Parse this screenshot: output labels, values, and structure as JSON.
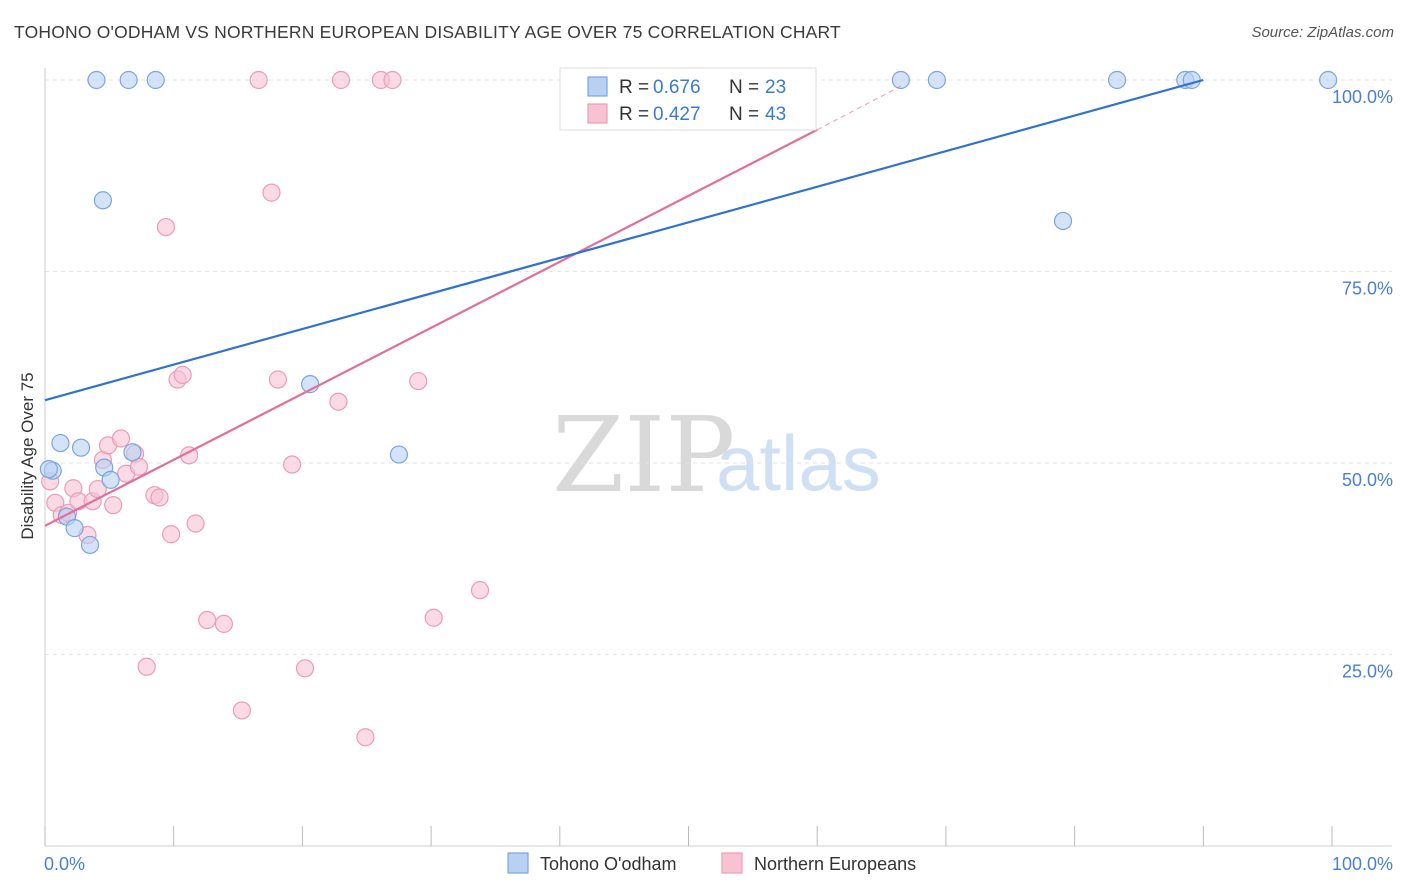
{
  "title": "TOHONO O'ODHAM VS NORTHERN EUROPEAN DISABILITY AGE OVER 75 CORRELATION CHART",
  "source": "Source: ZipAtlas.com",
  "watermark": {
    "zip": "ZIP",
    "atlas": "atlas"
  },
  "colors": {
    "blue_fill": "#b8d0f2",
    "blue_stroke": "#7aa5e0",
    "blue_line": "#2f72d0",
    "pink_fill": "#f7c3d3",
    "pink_stroke": "#ee9bb5",
    "pink_line": "#e0709a",
    "value_text": "#3a7ad6",
    "label_text": "#333333",
    "grid": "#e3e3e3"
  },
  "legend": {
    "r_label": "R =",
    "n_label": "N =",
    "rows": [
      {
        "series": "Tohono O'odham",
        "r": "0.676",
        "n": "23"
      },
      {
        "series": "Northern Europeans",
        "r": "0.427",
        "n": "43"
      }
    ]
  },
  "chart_data": {
    "type": "scatter",
    "title": "TOHONO O'ODHAM VS NORTHERN EUROPEAN DISABILITY AGE OVER 75 CORRELATION CHART",
    "xlabel": "",
    "ylabel": "Disability Age Over 75",
    "xlim": [
      0,
      100
    ],
    "ylim": [
      0,
      100
    ],
    "x_tick_labels": [
      {
        "value": 0,
        "label": "0.0%"
      },
      {
        "value": 100,
        "label": "100.0%"
      }
    ],
    "y_tick_labels": [
      {
        "value": 25,
        "label": "25.0%"
      },
      {
        "value": 50,
        "label": "50.0%"
      },
      {
        "value": 75,
        "label": "75.0%"
      },
      {
        "value": 100,
        "label": "100.0%"
      }
    ],
    "grid": true,
    "legend_position": "bottom",
    "series": [
      {
        "name": "Tohono O'odham",
        "trend": {
          "x": [
            0,
            90
          ],
          "y": [
            58.2,
            100
          ]
        },
        "points": [
          {
            "x": 0.6,
            "y": 49.0
          },
          {
            "x": 1.2,
            "y": 52.6
          },
          {
            "x": 1.7,
            "y": 43.0
          },
          {
            "x": 2.3,
            "y": 41.5
          },
          {
            "x": 2.8,
            "y": 52.0
          },
          {
            "x": 3.5,
            "y": 39.3
          },
          {
            "x": 4.6,
            "y": 49.4
          },
          {
            "x": 5.1,
            "y": 47.8
          },
          {
            "x": 6.8,
            "y": 51.4
          },
          {
            "x": 4.5,
            "y": 84.3
          },
          {
            "x": 4.0,
            "y": 100
          },
          {
            "x": 6.5,
            "y": 100
          },
          {
            "x": 8.6,
            "y": 100
          },
          {
            "x": 20.6,
            "y": 60.3
          },
          {
            "x": 27.5,
            "y": 51.1
          },
          {
            "x": 66.5,
            "y": 100
          },
          {
            "x": 69.3,
            "y": 100
          },
          {
            "x": 79.1,
            "y": 81.6
          },
          {
            "x": 83.3,
            "y": 100
          },
          {
            "x": 88.6,
            "y": 100
          },
          {
            "x": 89.1,
            "y": 100
          },
          {
            "x": 99.7,
            "y": 100
          },
          {
            "x": 0.3,
            "y": 49.2
          }
        ]
      },
      {
        "name": "Northern Europeans",
        "trend": {
          "x": [
            0,
            60
          ],
          "y": [
            41.8,
            93.5
          ]
        },
        "trend_dashed": {
          "x": [
            60,
            66.5
          ],
          "y": [
            93.5,
            99.2
          ]
        },
        "points": [
          {
            "x": 0.4,
            "y": 47.6
          },
          {
            "x": 0.8,
            "y": 44.8
          },
          {
            "x": 1.3,
            "y": 43.2
          },
          {
            "x": 1.8,
            "y": 43.5
          },
          {
            "x": 2.2,
            "y": 46.7
          },
          {
            "x": 2.6,
            "y": 45.0
          },
          {
            "x": 3.3,
            "y": 40.6
          },
          {
            "x": 3.7,
            "y": 45.0
          },
          {
            "x": 4.1,
            "y": 46.6
          },
          {
            "x": 4.5,
            "y": 50.4
          },
          {
            "x": 4.9,
            "y": 52.3
          },
          {
            "x": 5.3,
            "y": 44.5
          },
          {
            "x": 5.9,
            "y": 53.2
          },
          {
            "x": 6.3,
            "y": 48.6
          },
          {
            "x": 7.0,
            "y": 51.2
          },
          {
            "x": 7.3,
            "y": 49.5
          },
          {
            "x": 8.5,
            "y": 45.8
          },
          {
            "x": 8.9,
            "y": 45.5
          },
          {
            "x": 9.4,
            "y": 80.8
          },
          {
            "x": 9.8,
            "y": 40.7
          },
          {
            "x": 10.3,
            "y": 60.9
          },
          {
            "x": 10.7,
            "y": 61.5
          },
          {
            "x": 11.2,
            "y": 51.0
          },
          {
            "x": 11.7,
            "y": 42.1
          },
          {
            "x": 12.6,
            "y": 29.5
          },
          {
            "x": 13.9,
            "y": 29.0
          },
          {
            "x": 7.9,
            "y": 23.4
          },
          {
            "x": 15.3,
            "y": 17.7
          },
          {
            "x": 16.6,
            "y": 100
          },
          {
            "x": 17.6,
            "y": 85.3
          },
          {
            "x": 18.1,
            "y": 60.9
          },
          {
            "x": 19.2,
            "y": 49.8
          },
          {
            "x": 20.2,
            "y": 23.2
          },
          {
            "x": 22.8,
            "y": 58.0
          },
          {
            "x": 23.0,
            "y": 100
          },
          {
            "x": 24.9,
            "y": 14.2
          },
          {
            "x": 26.1,
            "y": 100
          },
          {
            "x": 27.0,
            "y": 100
          },
          {
            "x": 29.0,
            "y": 60.7
          },
          {
            "x": 30.2,
            "y": 29.8
          },
          {
            "x": 33.8,
            "y": 33.4
          },
          {
            "x": 40.7,
            "y": 100
          },
          {
            "x": 51.0,
            "y": 100
          }
        ]
      }
    ]
  }
}
